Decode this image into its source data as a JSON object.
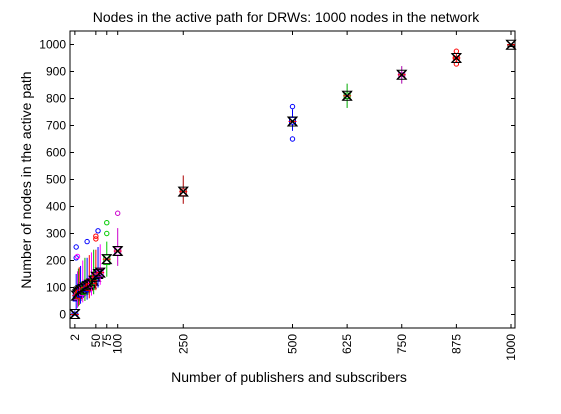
{
  "chart_data": {
    "type": "box",
    "title": "Nodes in the active path for DRWs: 1000 nodes in the network",
    "xlabel": "Number of publishers and subscribers",
    "ylabel": "Number of nodes in the active path",
    "xlim": [
      0,
      1000
    ],
    "ylim": [
      -50,
      1050
    ],
    "x_ticks": [
      2,
      50,
      75,
      100,
      250,
      500,
      625,
      750,
      875,
      1000
    ],
    "x_tick_labels": [
      "2",
      "50",
      "75",
      "100",
      "250",
      "500",
      "625",
      "750",
      "875",
      "1000"
    ],
    "y_ticks": [
      0,
      100,
      200,
      300,
      400,
      500,
      600,
      700,
      800,
      900,
      1000
    ],
    "y_tick_labels": [
      "0",
      "100",
      "200",
      "300",
      "400",
      "500",
      "600",
      "700",
      "800",
      "900",
      "1000"
    ],
    "grid": false,
    "boxes": [
      {
        "x": 2,
        "q1": 0,
        "median": 0,
        "q3": 5,
        "whisker_low": 0,
        "whisker_high": 15,
        "mean": 2,
        "outliers": [],
        "color": "#0000ff"
      },
      {
        "x": 5,
        "q1": 50,
        "median": 70,
        "q3": 90,
        "whisker_low": 20,
        "whisker_high": 150,
        "mean": 70,
        "outliers": [
          210,
          250
        ],
        "color": "#0000ff"
      },
      {
        "x": 8,
        "q1": 55,
        "median": 75,
        "q3": 95,
        "whisker_low": 25,
        "whisker_high": 160,
        "mean": 75,
        "outliers": [
          215
        ],
        "color": "#ff00ff"
      },
      {
        "x": 10,
        "q1": 60,
        "median": 80,
        "q3": 100,
        "whisker_low": 30,
        "whisker_high": 170,
        "mean": 80,
        "outliers": [],
        "color": "#00aa00"
      },
      {
        "x": 12,
        "q1": 60,
        "median": 85,
        "q3": 105,
        "whisker_low": 35,
        "whisker_high": 175,
        "mean": 85,
        "outliers": [],
        "color": "#ff0000"
      },
      {
        "x": 15,
        "q1": 65,
        "median": 90,
        "q3": 110,
        "whisker_low": 40,
        "whisker_high": 180,
        "mean": 90,
        "outliers": [],
        "color": "#0000ff"
      },
      {
        "x": 20,
        "q1": 70,
        "median": 95,
        "q3": 115,
        "whisker_low": 45,
        "whisker_high": 200,
        "mean": 95,
        "outliers": [],
        "color": "#ff00ff"
      },
      {
        "x": 25,
        "q1": 75,
        "median": 100,
        "q3": 120,
        "whisker_low": 50,
        "whisker_high": 210,
        "mean": 100,
        "outliers": [],
        "color": "#00aa00"
      },
      {
        "x": 30,
        "q1": 85,
        "median": 105,
        "q3": 125,
        "whisker_low": 55,
        "whisker_high": 210,
        "mean": 105,
        "outliers": [
          270
        ],
        "color": "#0000ff"
      },
      {
        "x": 35,
        "q1": 90,
        "median": 110,
        "q3": 130,
        "whisker_low": 60,
        "whisker_high": 220,
        "mean": 110,
        "outliers": [],
        "color": "#ff0000"
      },
      {
        "x": 40,
        "q1": 100,
        "median": 115,
        "q3": 135,
        "whisker_low": 70,
        "whisker_high": 230,
        "mean": 115,
        "outliers": [],
        "color": "#ff00ff"
      },
      {
        "x": 45,
        "q1": 110,
        "median": 125,
        "q3": 145,
        "whisker_low": 75,
        "whisker_high": 240,
        "mean": 125,
        "outliers": [],
        "color": "#00aa00"
      },
      {
        "x": 50,
        "q1": 125,
        "median": 140,
        "q3": 155,
        "whisker_low": 90,
        "whisker_high": 240,
        "mean": 140,
        "outliers": [
          280,
          290
        ],
        "color": "#ff0000"
      },
      {
        "x": 55,
        "q1": 135,
        "median": 150,
        "q3": 165,
        "whisker_low": 100,
        "whisker_high": 250,
        "mean": 150,
        "outliers": [
          310
        ],
        "color": "#0000ff"
      },
      {
        "x": 60,
        "q1": 140,
        "median": 155,
        "q3": 170,
        "whisker_low": 110,
        "whisker_high": 260,
        "mean": 155,
        "outliers": [],
        "color": "#ff00ff"
      },
      {
        "x": 75,
        "q1": 185,
        "median": 205,
        "q3": 220,
        "whisker_low": 140,
        "whisker_high": 270,
        "mean": 205,
        "outliers": [
          300,
          340
        ],
        "color": "#00cc00"
      },
      {
        "x": 100,
        "q1": 220,
        "median": 235,
        "q3": 250,
        "whisker_low": 180,
        "whisker_high": 320,
        "mean": 235,
        "outliers": [
          375
        ],
        "color": "#cc00cc"
      },
      {
        "x": 250,
        "q1": 440,
        "median": 455,
        "q3": 465,
        "whisker_low": 410,
        "whisker_high": 515,
        "mean": 455,
        "outliers": [],
        "color": "#aa0000"
      },
      {
        "x": 500,
        "q1": 705,
        "median": 715,
        "q3": 730,
        "whisker_low": 680,
        "whisker_high": 760,
        "mean": 715,
        "outliers": [
          650,
          770
        ],
        "color": "#0000ff"
      },
      {
        "x": 625,
        "q1": 800,
        "median": 810,
        "q3": 820,
        "whisker_low": 765,
        "whisker_high": 855,
        "mean": 810,
        "outliers": [],
        "color": "#00aa00"
      },
      {
        "x": 750,
        "q1": 882,
        "median": 888,
        "q3": 895,
        "whisker_low": 855,
        "whisker_high": 920,
        "mean": 888,
        "outliers": [],
        "color": "#aa00aa"
      },
      {
        "x": 875,
        "q1": 945,
        "median": 950,
        "q3": 955,
        "whisker_low": 935,
        "whisker_high": 965,
        "mean": 950,
        "outliers": [
          928,
          975
        ],
        "color": "#ff0000"
      },
      {
        "x": 1000,
        "q1": 998,
        "median": 999,
        "q3": 1000,
        "whisker_low": 995,
        "whisker_high": 1000,
        "mean": 999,
        "outliers": [],
        "color": "#000000"
      }
    ]
  }
}
